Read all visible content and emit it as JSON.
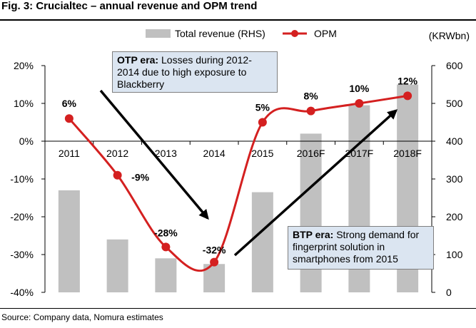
{
  "figure": {
    "title": "Fig. 3: Crucialtec – annual revenue and OPM trend",
    "source": "Source: Company data, Nomura estimates",
    "unit": "(KRWbn)"
  },
  "annotations": {
    "otp_bold": "OTP era:",
    "otp_text": " Losses during 2012-2014 due to high exposure to Blackberry",
    "btp_bold": "BTP era:",
    "btp_text": " Strong demand for fingerprint solution in smartphones from 2015"
  },
  "colors": {
    "bar": "#c0c0c0",
    "line": "#d42020",
    "annotation_bg": "#dbe5f1",
    "arrow": "#000000"
  },
  "chart_data": {
    "type": "bar+line",
    "title": "Crucialtec – annual revenue and OPM trend",
    "categories": [
      "2011",
      "2012",
      "2013",
      "2014",
      "2015",
      "2016F",
      "2017F",
      "2018F"
    ],
    "series": [
      {
        "name": "Total revenue (RHS)",
        "type": "bar",
        "axis": "right",
        "values": [
          270,
          140,
          90,
          75,
          265,
          420,
          495,
          550
        ]
      },
      {
        "name": "OPM",
        "type": "line",
        "axis": "left",
        "values": [
          6,
          -9,
          -28,
          -32,
          5,
          8,
          10,
          12
        ],
        "labels": [
          "6%",
          "-9%",
          "-28%",
          "-32%",
          "5%",
          "8%",
          "10%",
          "12%"
        ]
      }
    ],
    "left_axis": {
      "min": -40,
      "max": 20,
      "ticks": [
        20,
        10,
        0,
        -10,
        -20,
        -30,
        -40
      ],
      "tick_labels": [
        "20%",
        "10%",
        "0%",
        "-10%",
        "-20%",
        "-30%",
        "-40%"
      ]
    },
    "right_axis": {
      "label": "(KRWbn)",
      "min": 0,
      "max": 600,
      "ticks": [
        600,
        500,
        400,
        300,
        200,
        100,
        0
      ],
      "tick_labels": [
        "600",
        "500",
        "400",
        "300",
        "200",
        "100",
        "0"
      ]
    },
    "legend": {
      "position": "top",
      "entries": [
        "Total revenue (RHS)",
        "OPM"
      ]
    },
    "grid": false
  }
}
